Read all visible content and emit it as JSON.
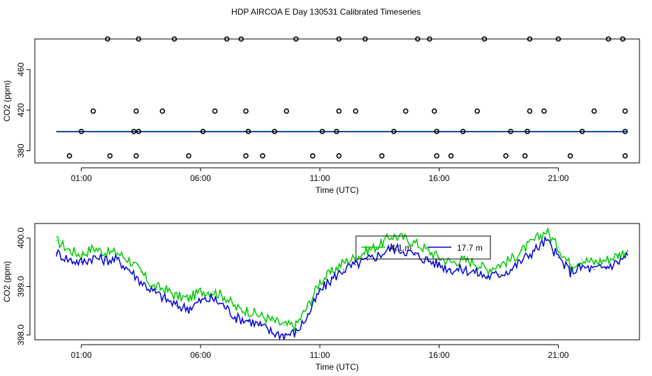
{
  "title": "HDP AIRCOA E  Day 130531  Calibrated Timeseries",
  "colors": {
    "green": "#00c800",
    "blue": "#0000d0",
    "black": "#000000",
    "background": "#ffffff"
  },
  "chart_data": [
    {
      "type": "scatter",
      "xlabel": "Time (UTC)",
      "ylabel": "CO2 (ppm)",
      "xlim_hours": [
        -0.95,
        24.4
      ],
      "ylim": [
        368,
        490
      ],
      "xticks": [
        {
          "hour": 1,
          "label": "01:00"
        },
        {
          "hour": 6,
          "label": "06:00"
        },
        {
          "hour": 11,
          "label": "11:00"
        },
        {
          "hour": 16,
          "label": "16:00"
        },
        {
          "hour": 21,
          "label": "21:00"
        }
      ],
      "yticks": [
        {
          "value": 380,
          "label": "380"
        },
        {
          "value": 420,
          "label": "420"
        },
        {
          "value": 460,
          "label": "460"
        }
      ],
      "grid": false,
      "calibration_points_hours": {
        "ppm_375": [
          0.5,
          2.2,
          3.3,
          5.5,
          7.9,
          8.6,
          10.7,
          11.8,
          13.6,
          15.9,
          16.5,
          18.8,
          19.6,
          21.5,
          23.8
        ],
        "ppm_399": [
          1.0,
          3.2,
          3.4,
          6.1,
          8.0,
          9.1,
          11.1,
          11.7,
          14.1,
          15.9,
          17.0,
          19.0,
          19.7,
          22.0,
          23.8
        ],
        "ppm_419": [
          1.5,
          3.3,
          4.4,
          6.6,
          7.9,
          9.6,
          11.8,
          12.5,
          14.6,
          15.8,
          17.6,
          19.8,
          20.4,
          22.5,
          23.8
        ],
        "ppm_490": [
          2.1,
          3.4,
          4.9,
          7.1,
          7.7,
          10.0,
          11.8,
          12.9,
          15.1,
          15.6,
          17.9,
          19.8,
          21.0,
          23.1,
          23.7
        ]
      },
      "series": [
        {
          "color": "green",
          "data_label": "4.1 m / 17.7 m line at ~399 ppm"
        }
      ]
    },
    {
      "type": "line",
      "xlabel": "Time (UTC)",
      "ylabel": "CO2 (ppm)",
      "xlim_hours": [
        -0.95,
        24.4
      ],
      "ylim": [
        397.9,
        400.3
      ],
      "xticks": [
        {
          "hour": 1,
          "label": "01:00"
        },
        {
          "hour": 6,
          "label": "06:00"
        },
        {
          "hour": 11,
          "label": "11:00"
        },
        {
          "hour": 16,
          "label": "16:00"
        },
        {
          "hour": 21,
          "label": "21:00"
        }
      ],
      "yticks": [
        {
          "value": 398.0,
          "label": "398.0"
        },
        {
          "value": 399.0,
          "label": "399.0"
        },
        {
          "value": 400.0,
          "label": "400.0"
        }
      ],
      "grid": false,
      "legend": {
        "placement": "top-center",
        "entries": [
          {
            "label": "4.1 m",
            "color": "green"
          },
          {
            "label": "17.7 m",
            "color": "blue"
          }
        ]
      },
      "series": [
        {
          "name": "4.1 m",
          "color": "green",
          "x_hours": [
            -0.05,
            0.5,
            1.0,
            1.5,
            2.0,
            2.5,
            3.0,
            3.5,
            4.0,
            4.5,
            5.0,
            5.5,
            6.0,
            6.5,
            7.0,
            7.5,
            8.0,
            8.5,
            9.0,
            9.5,
            10.0,
            10.5,
            11.0,
            11.5,
            12.0,
            12.5,
            13.0,
            13.5,
            14.0,
            14.5,
            15.0,
            15.5,
            16.0,
            16.5,
            17.0,
            17.5,
            18.0,
            18.5,
            19.0,
            19.5,
            20.0,
            20.5,
            21.0,
            21.5,
            22.0,
            22.5,
            23.0,
            23.5,
            23.9
          ],
          "values": [
            399.95,
            399.75,
            399.65,
            399.8,
            399.7,
            399.7,
            399.55,
            399.3,
            399.0,
            398.95,
            398.8,
            398.75,
            398.9,
            398.9,
            398.8,
            398.55,
            398.5,
            398.4,
            398.3,
            398.2,
            398.2,
            398.6,
            399.1,
            399.3,
            399.5,
            399.6,
            399.75,
            399.85,
            400.05,
            400.0,
            399.9,
            399.75,
            399.6,
            399.5,
            399.55,
            399.5,
            399.35,
            399.45,
            399.55,
            399.75,
            399.95,
            400.15,
            399.8,
            399.45,
            399.55,
            399.5,
            399.55,
            399.65,
            399.75
          ]
        },
        {
          "name": "17.7 m",
          "color": "blue",
          "x_hours": [
            -0.05,
            0.5,
            1.0,
            1.5,
            2.0,
            2.5,
            3.0,
            3.5,
            4.0,
            4.5,
            5.0,
            5.5,
            6.0,
            6.5,
            7.0,
            7.5,
            8.0,
            8.5,
            9.0,
            9.5,
            10.0,
            10.5,
            11.0,
            11.5,
            12.0,
            12.5,
            13.0,
            13.5,
            14.0,
            14.5,
            15.0,
            15.5,
            16.0,
            16.5,
            17.0,
            17.5,
            18.0,
            18.5,
            19.0,
            19.5,
            20.0,
            20.5,
            21.0,
            21.5,
            22.0,
            22.5,
            23.0,
            23.5,
            23.9
          ],
          "values": [
            399.7,
            399.55,
            399.5,
            399.6,
            399.55,
            399.55,
            399.35,
            399.1,
            398.9,
            398.75,
            398.6,
            398.55,
            398.7,
            398.75,
            398.6,
            398.35,
            398.3,
            398.2,
            398.05,
            398.0,
            398.05,
            398.4,
            398.9,
            399.15,
            399.35,
            399.45,
            399.55,
            399.65,
            399.8,
            399.75,
            399.65,
            399.55,
            399.45,
            399.35,
            399.35,
            399.3,
            399.2,
            399.25,
            399.35,
            399.55,
            399.75,
            399.95,
            399.6,
            399.3,
            399.4,
            399.35,
            399.4,
            399.5,
            399.65
          ]
        }
      ]
    }
  ]
}
